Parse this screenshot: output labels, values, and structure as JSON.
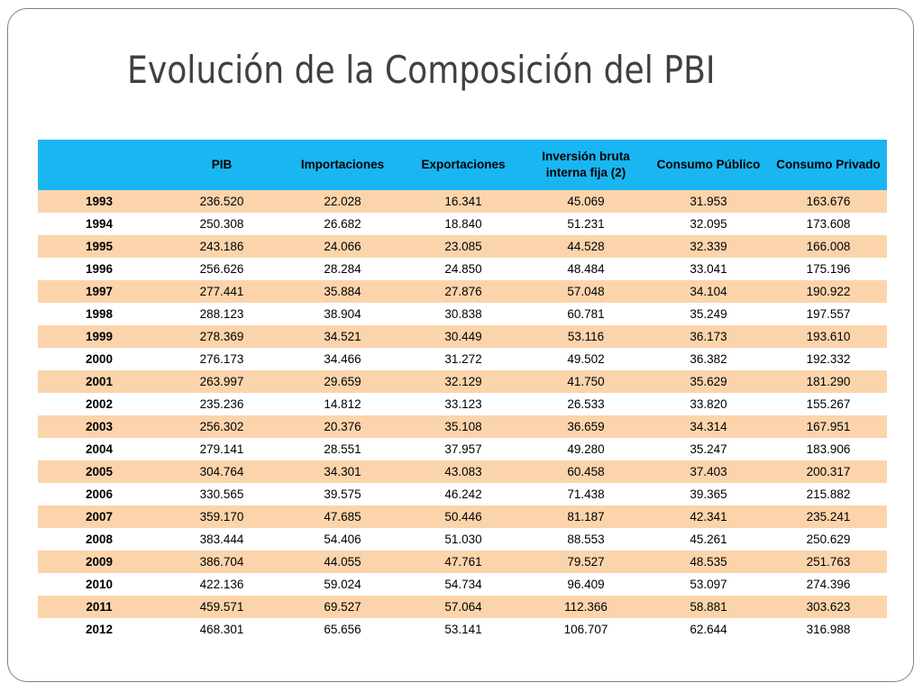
{
  "title": "Evolución de la Composición del PBI",
  "table": {
    "headers": [
      "",
      "PIB",
      "Importaciones",
      "Exportaciones",
      "Inversión bruta interna fija (2)",
      "Consumo Público",
      "Consumo Privado"
    ],
    "rows": [
      [
        "1993",
        "236.520",
        "22.028",
        "16.341",
        "45.069",
        "31.953",
        "163.676"
      ],
      [
        "1994",
        "250.308",
        "26.682",
        "18.840",
        "51.231",
        "32.095",
        "173.608"
      ],
      [
        "1995",
        "243.186",
        "24.066",
        "23.085",
        "44.528",
        "32.339",
        "166.008"
      ],
      [
        "1996",
        "256.626",
        "28.284",
        "24.850",
        "48.484",
        "33.041",
        "175.196"
      ],
      [
        "1997",
        "277.441",
        "35.884",
        "27.876",
        "57.048",
        "34.104",
        "190.922"
      ],
      [
        "1998",
        "288.123",
        "38.904",
        "30.838",
        "60.781",
        "35.249",
        "197.557"
      ],
      [
        "1999",
        "278.369",
        "34.521",
        "30.449",
        "53.116",
        "36.173",
        "193.610"
      ],
      [
        "2000",
        "276.173",
        "34.466",
        "31.272",
        "49.502",
        "36.382",
        "192.332"
      ],
      [
        "2001",
        "263.997",
        "29.659",
        "32.129",
        "41.750",
        "35.629",
        "181.290"
      ],
      [
        "2002",
        "235.236",
        "14.812",
        "33.123",
        "26.533",
        "33.820",
        "155.267"
      ],
      [
        "2003",
        "256.302",
        "20.376",
        "35.108",
        "36.659",
        "34.314",
        "167.951"
      ],
      [
        "2004",
        "279.141",
        "28.551",
        "37.957",
        "49.280",
        "35.247",
        "183.906"
      ],
      [
        "2005",
        "304.764",
        "34.301",
        "43.083",
        "60.458",
        "37.403",
        "200.317"
      ],
      [
        "2006",
        "330.565",
        "39.575",
        "46.242",
        "71.438",
        "39.365",
        "215.882"
      ],
      [
        "2007",
        "359.170",
        "47.685",
        "50.446",
        "81.187",
        "42.341",
        "235.241"
      ],
      [
        "2008",
        "383.444",
        "54.406",
        "51.030",
        "88.553",
        "45.261",
        "250.629"
      ],
      [
        "2009",
        "386.704",
        "44.055",
        "47.761",
        "79.527",
        "48.535",
        "251.763"
      ],
      [
        "2010",
        "422.136",
        "59.024",
        "54.734",
        "96.409",
        "53.097",
        "274.396"
      ],
      [
        "2011",
        "459.571",
        "69.527",
        "57.064",
        "112.366",
        "58.881",
        "303.623"
      ],
      [
        "2012",
        "468.301",
        "65.656",
        "53.141",
        "106.707",
        "62.644",
        "316.988"
      ]
    ]
  },
  "colors": {
    "header_background": "#1ab6f2",
    "odd_row_background": "#fcd4ac",
    "even_row_background": "#ffffff",
    "title_text": "#404040"
  }
}
